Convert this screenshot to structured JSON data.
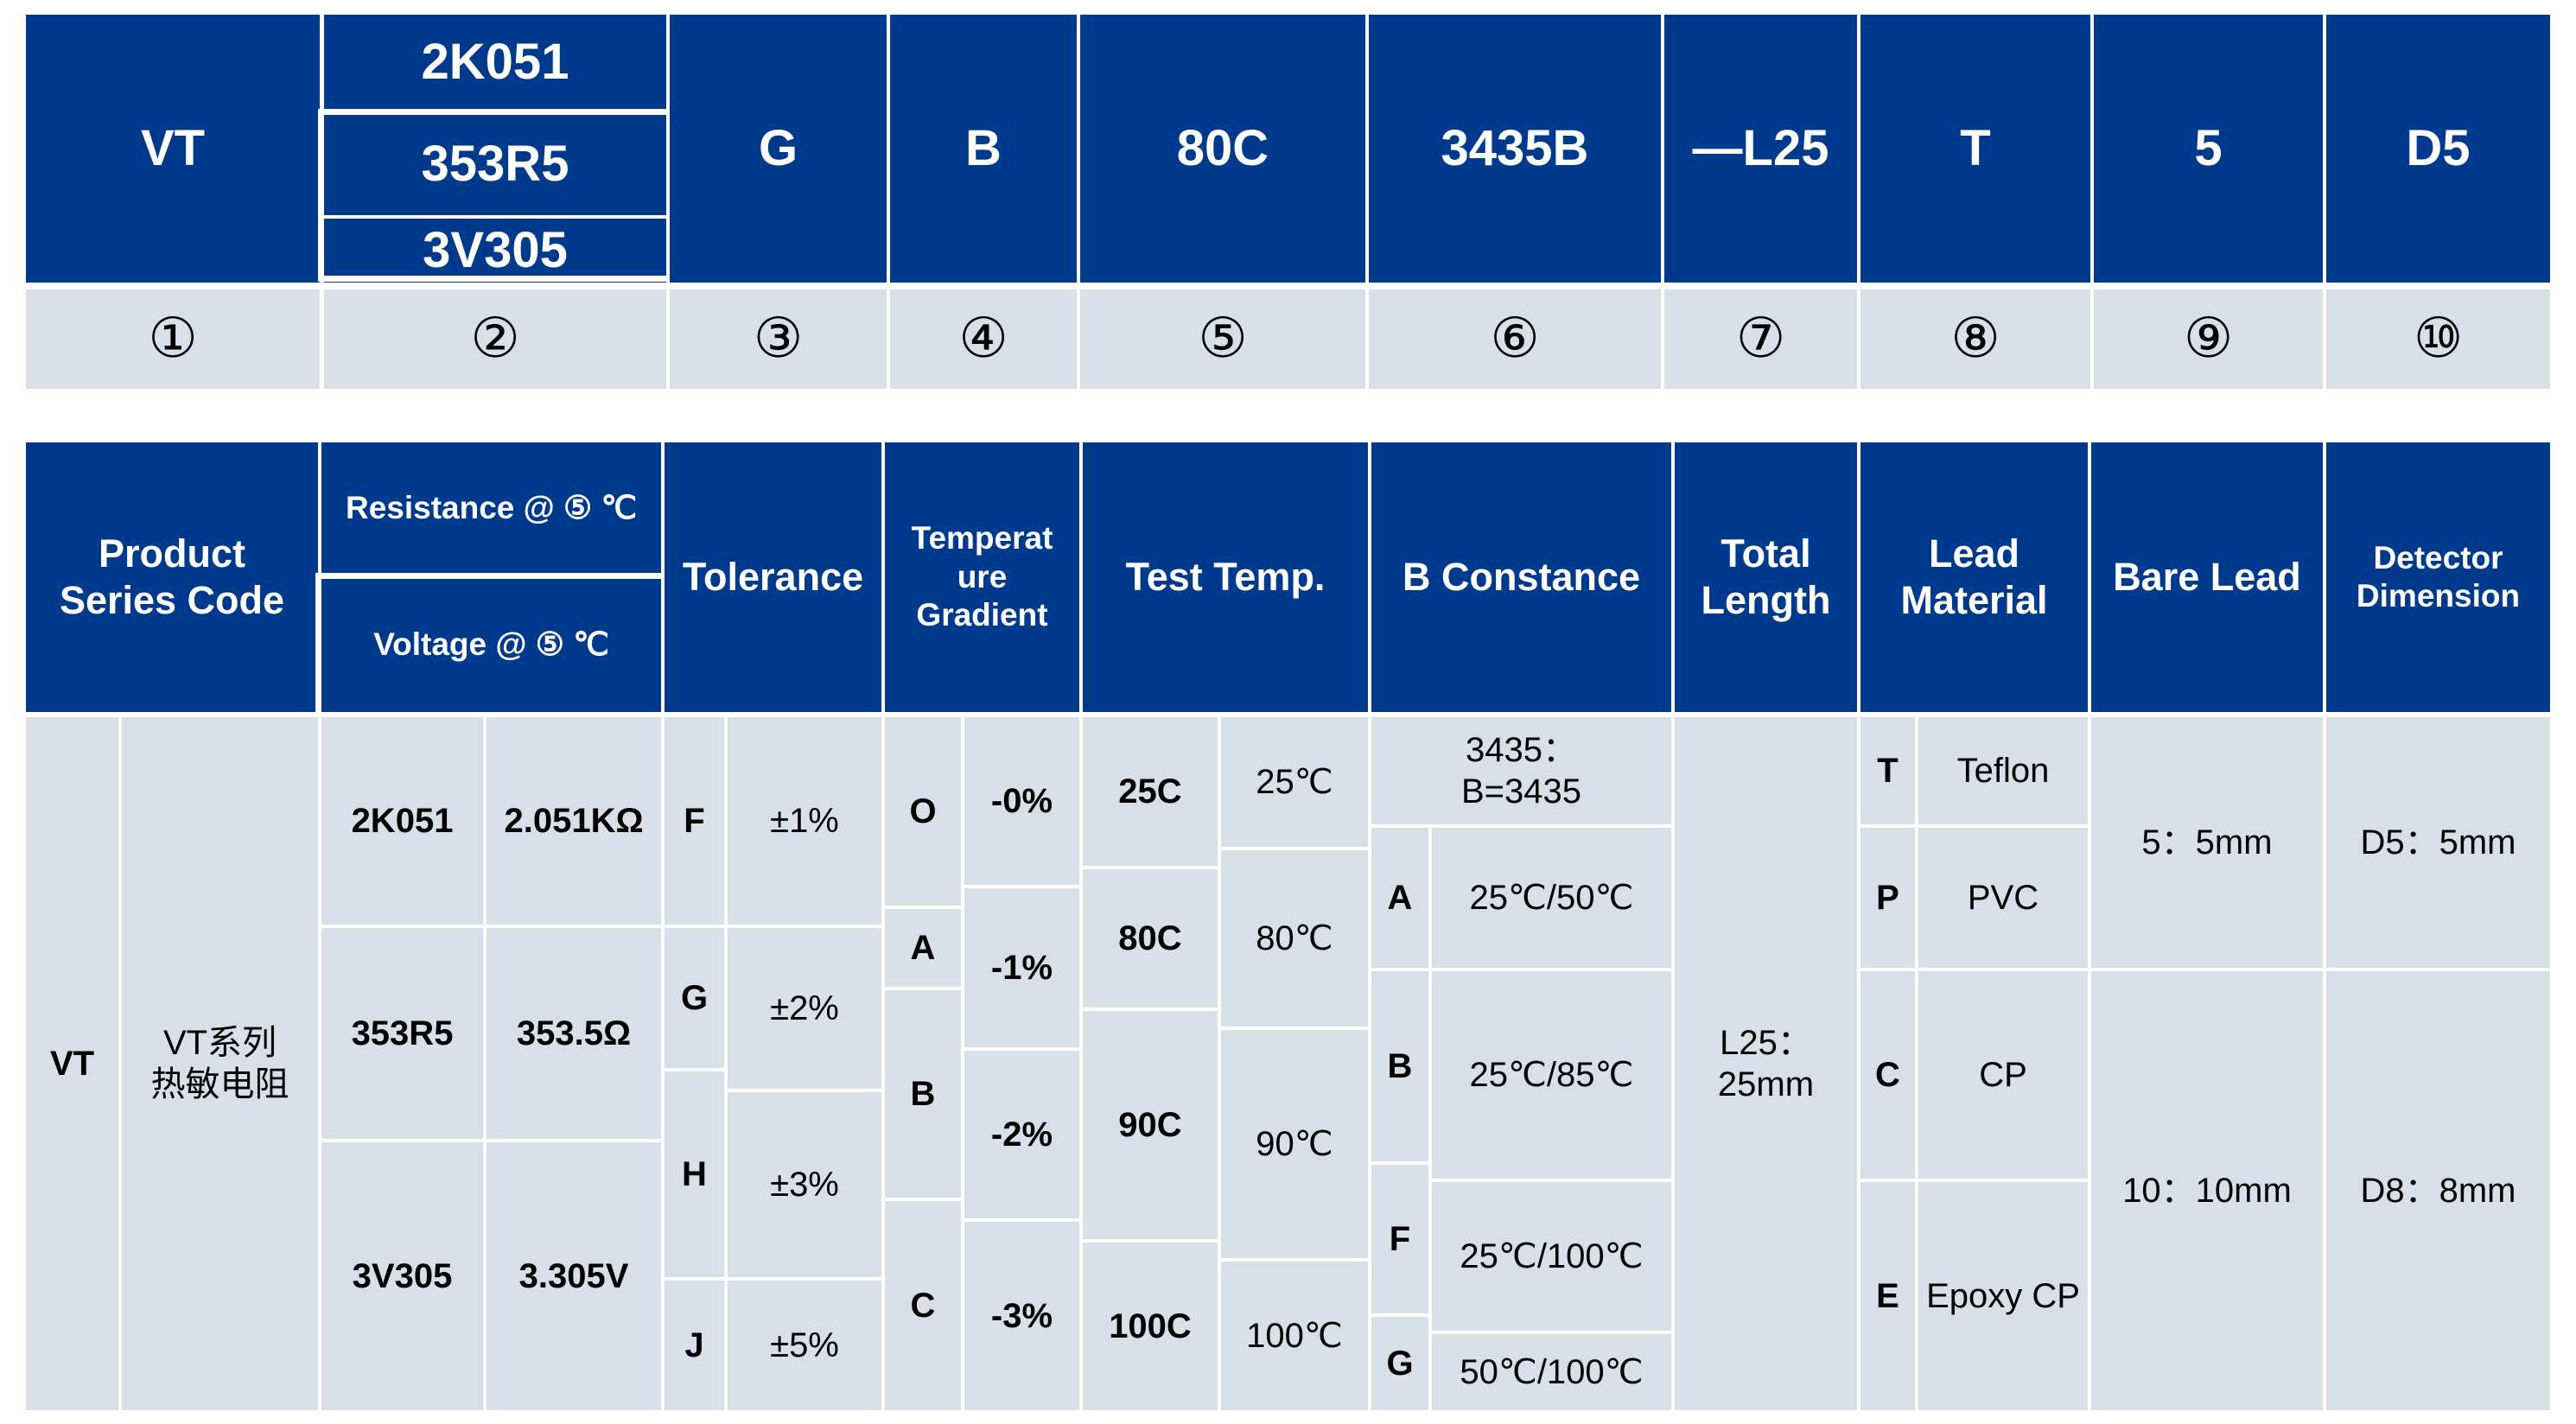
{
  "code": {
    "p1": "VT",
    "p2": [
      "2K051",
      "353R5",
      "3V305"
    ],
    "p3": "G",
    "p4": "B",
    "p5": "80C",
    "p6": "3435B",
    "p7": "—L25",
    "p8": "T",
    "p9": "5",
    "p10": "D5"
  },
  "numbers": [
    "①",
    "②",
    "③",
    "④",
    "⑤",
    "⑥",
    "⑦",
    "⑧",
    "⑨",
    "⑩"
  ],
  "headers": {
    "h1": "Product\nSeries Code",
    "h2a": "Resistance @ ⑤ ℃",
    "h2b": "Voltage @ ⑤ ℃",
    "h3": "Tolerance",
    "h4": "Temperat\nure\nGradient",
    "h5": "Test Temp.",
    "h6": "B Constance",
    "h7": "Total\nLength",
    "h8": "Lead\nMaterial",
    "h9": "Bare Lead",
    "h10": "Detector\nDimension"
  },
  "series": {
    "code": "VT",
    "desc": "VT系列\n热敏电阻"
  },
  "resistance": [
    {
      "code": "2K051",
      "value": "2.051KΩ"
    },
    {
      "code": "353R5",
      "value": "353.5Ω"
    },
    {
      "code": "3V305",
      "value": "3.305V"
    }
  ],
  "tolerance": [
    {
      "code": "F",
      "value": "±1%"
    },
    {
      "code": "G",
      "value": "±2%"
    },
    {
      "code": "H",
      "value": "±3%"
    },
    {
      "code": "J",
      "value": "±5%"
    }
  ],
  "gradient": [
    {
      "code": "O",
      "value": "-0%"
    },
    {
      "code": "A",
      "value": "-1%"
    },
    {
      "code": "B",
      "value": "-2%"
    },
    {
      "code": "C",
      "value": "-3%"
    }
  ],
  "test_temp": [
    {
      "code": "25C",
      "value": "25℃"
    },
    {
      "code": "80C",
      "value": "80℃"
    },
    {
      "code": "90C",
      "value": "90℃"
    },
    {
      "code": "100C",
      "value": "100℃"
    }
  ],
  "b_const": {
    "top": "3435：\nB=3435",
    "rows": [
      {
        "code": "A",
        "value": "25℃/50℃"
      },
      {
        "code": "B",
        "value": "25℃/85℃"
      },
      {
        "code": "F",
        "value": "25℃/100℃"
      },
      {
        "code": "G",
        "value": "50℃/100℃"
      }
    ]
  },
  "total_length": "L25：\n25mm",
  "lead": [
    {
      "code": "T",
      "value": "Teflon"
    },
    {
      "code": "P",
      "value": "PVC"
    },
    {
      "code": "C",
      "value": "CP"
    },
    {
      "code": "E",
      "value": "Epoxy CP"
    }
  ],
  "bare_lead": [
    "5：5mm",
    "10：10mm"
  ],
  "detector": [
    "D5：5mm",
    "D8：8mm"
  ],
  "colors": {
    "header_bg": "#003a8c",
    "cell_bg": "#d9dfe8",
    "header_text": "#ffffff"
  }
}
